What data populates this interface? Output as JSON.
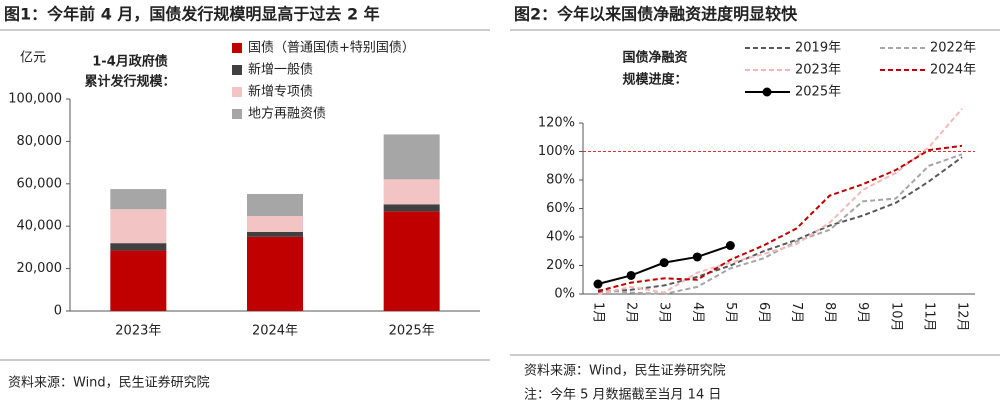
{
  "chart_data": [
    {
      "type": "bar",
      "title": "图1：今年前 4 月，国债发行规模明显高于过去 2 年",
      "y_axis_label": "亿元",
      "annotation": [
        "1-4月政府债",
        "累计发行规模："
      ],
      "categories": [
        "2023年",
        "2024年",
        "2025年"
      ],
      "series": [
        {
          "name": "国债（普通国债+特别国债）",
          "color": "#c00000",
          "values": [
            28500,
            35000,
            47000
          ]
        },
        {
          "name": "新增一般债",
          "color": "#404040",
          "values": [
            3500,
            2300,
            3300
          ]
        },
        {
          "name": "新增专项债",
          "color": "#f2c4c4",
          "values": [
            16000,
            7500,
            11800
          ]
        },
        {
          "name": "地方再融资债",
          "color": "#a6a6a6",
          "values": [
            9500,
            10400,
            21200
          ]
        }
      ],
      "ylim": [
        0,
        100000
      ],
      "yticks": [
        0,
        {
          "value": 20000,
          "label": "20,000"
        },
        {
          "value": 40000,
          "label": "40,000"
        },
        {
          "value": 60000,
          "label": "60,000"
        },
        {
          "value": 80000,
          "label": "80,000"
        },
        {
          "value": 100000,
          "label": "100,000"
        }
      ],
      "source": "资料来源：Wind，民生证券研究院"
    },
    {
      "type": "line",
      "title": "图2：今年以来国债净融资进度明显较快",
      "annotation": [
        "国债净融资",
        "规模进度："
      ],
      "categories": [
        "1月",
        "2月",
        "3月",
        "4月",
        "5月",
        "6月",
        "7月",
        "8月",
        "9月",
        "10月",
        "11月",
        "12月"
      ],
      "series": [
        {
          "name": "2019年",
          "color": "#595959",
          "dash": true,
          "values": [
            1,
            3,
            6,
            12,
            20,
            30,
            38,
            48,
            55,
            64,
            79,
            96
          ]
        },
        {
          "name": "2022年",
          "color": "#a6a6a6",
          "dash": true,
          "values": [
            3,
            1,
            0,
            5,
            18,
            25,
            37,
            45,
            65,
            67,
            90,
            98
          ]
        },
        {
          "name": "2023年",
          "color": "#f4b8b8",
          "dash": true,
          "values": [
            0,
            5,
            1,
            15,
            22,
            28,
            35,
            50,
            73,
            85,
            103,
            130
          ]
        },
        {
          "name": "2024年",
          "color": "#c00000",
          "dash": true,
          "values": [
            2,
            8,
            11,
            10,
            24,
            34,
            46,
            69,
            77,
            87,
            101,
            104
          ]
        },
        {
          "name": "2025年",
          "color": "#000000",
          "dash": false,
          "markers": true,
          "values": [
            7,
            13,
            22,
            26,
            34,
            null,
            null,
            null,
            null,
            null,
            null,
            null
          ]
        }
      ],
      "ylim": [
        0,
        120
      ],
      "yticks": [
        {
          "value": 0,
          "label": "0%"
        },
        {
          "value": 20,
          "label": "20%"
        },
        {
          "value": 40,
          "label": "40%"
        },
        {
          "value": 60,
          "label": "60%"
        },
        {
          "value": 80,
          "label": "80%"
        },
        {
          "value": 100,
          "label": "100%"
        },
        {
          "value": 120,
          "label": "120%"
        }
      ],
      "reference_line": 100,
      "source": "资料来源：Wind，民生证券研究院",
      "note": "注：今年 5 月数据截至当月 14 日"
    }
  ]
}
